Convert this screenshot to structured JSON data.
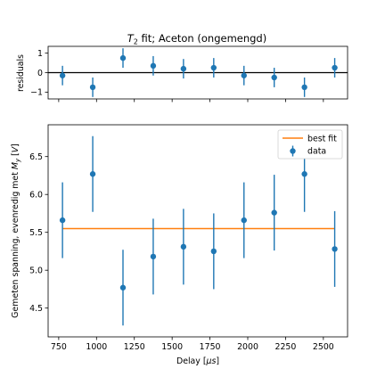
{
  "chart_data": [
    {
      "type": "scatter",
      "title": "$T_2$ fit; Aceton (ongemengd)",
      "title_math": "T",
      "title_sub": "2",
      "title_rest": " fit; Aceton (ongemengd)",
      "ylabel": "residuals",
      "xlim": [
        680,
        2660
      ],
      "ylim": [
        -1.35,
        1.35
      ],
      "yticks": [
        -1,
        0,
        1
      ],
      "zero_line": 0,
      "series": [
        {
          "x": [
            775,
            975,
            1175,
            1375,
            1575,
            1775,
            1975,
            2175,
            2375,
            2575
          ],
          "y": [
            -0.15,
            -0.75,
            0.75,
            0.35,
            0.2,
            0.25,
            -0.15,
            -0.25,
            -0.75,
            0.25
          ],
          "err": [
            0.5,
            0.5,
            0.5,
            0.5,
            0.5,
            0.5,
            0.5,
            0.5,
            0.5,
            0.5
          ]
        }
      ],
      "colors": {
        "points": "#1f77b4",
        "zero_line": "#000000"
      }
    },
    {
      "type": "scatter",
      "xlabel": "Delay [$\\mu s$]",
      "xlabel_parts": [
        "Delay [",
        "μs",
        "]"
      ],
      "ylabel": "Gemeten spanning, evenredig met $M_y$ [$V$]",
      "ylabel_parts": [
        "Gemeten spanning, evenredig met ",
        "M",
        "y",
        " [",
        "V",
        "]"
      ],
      "xlim": [
        680,
        2660
      ],
      "ylim": [
        4.12,
        6.92
      ],
      "xticks": [
        750,
        1000,
        1250,
        1500,
        1750,
        2000,
        2250,
        2500
      ],
      "yticks": [
        "4.5",
        "5.0",
        "5.5",
        "6.0",
        "6.5"
      ],
      "legend": {
        "position": "top-right",
        "entries": [
          "best fit",
          "data"
        ]
      },
      "series": [
        {
          "name": "data",
          "x": [
            775,
            975,
            1175,
            1375,
            1575,
            1775,
            1975,
            2175,
            2375,
            2575
          ],
          "y": [
            5.66,
            6.27,
            4.77,
            5.18,
            5.31,
            5.25,
            5.66,
            5.76,
            6.27,
            5.28
          ],
          "err": [
            0.5,
            0.5,
            0.5,
            0.5,
            0.5,
            0.5,
            0.5,
            0.5,
            0.5,
            0.5
          ]
        },
        {
          "name": "best fit",
          "x": [
            775,
            2575
          ],
          "y": [
            5.55,
            5.55
          ]
        }
      ],
      "colors": {
        "data": "#1f77b4",
        "fit": "#ff7f0e"
      }
    }
  ]
}
